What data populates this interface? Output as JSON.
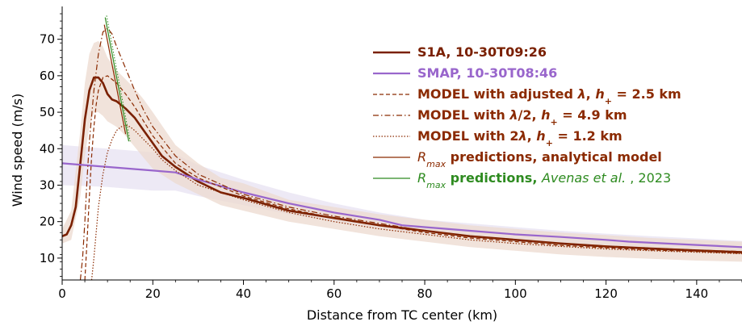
{
  "chart_data": {
    "type": "line",
    "xlabel": "Distance from TC center (km)",
    "ylabel": "Wind speed (m/s)",
    "xlim": [
      0,
      150
    ],
    "ylim": [
      4,
      79
    ],
    "x_ticks": [
      0,
      20,
      40,
      60,
      80,
      100,
      120,
      140
    ],
    "y_ticks": [
      10,
      20,
      30,
      40,
      50,
      60,
      70
    ],
    "grid": false,
    "legend_position": "upper-right",
    "colors": {
      "s1a": "#7a2000",
      "smap": "#9966cc",
      "model": "#8b2a00",
      "green": "#2e8b20",
      "s1a_band": "#ecd9cf",
      "smap_band": "#e7e1f2"
    },
    "legend": [
      {
        "key": "s1a",
        "parts": [
          {
            "text": "S1A, 10-30T09:26"
          }
        ]
      },
      {
        "key": "smap",
        "parts": [
          {
            "text": "SMAP, 10-30T08:46"
          }
        ]
      },
      {
        "key": "model_adj",
        "parts": [
          {
            "text": "MODEL with adjusted "
          },
          {
            "text": "λ",
            "italic": true
          },
          {
            "text": ", "
          },
          {
            "text": "h",
            "italic": true
          },
          {
            "text": "+",
            "sub": true
          },
          {
            "text": " = 2.5 km"
          }
        ]
      },
      {
        "key": "model_half",
        "parts": [
          {
            "text": "MODEL with "
          },
          {
            "text": "λ",
            "italic": true
          },
          {
            "text": "/2, "
          },
          {
            "text": "h",
            "italic": true
          },
          {
            "text": "+",
            "sub": true
          },
          {
            "text": " = 4.9 km"
          }
        ]
      },
      {
        "key": "model_double",
        "parts": [
          {
            "text": "MODEL with 2"
          },
          {
            "text": "λ",
            "italic": true
          },
          {
            "text": ", "
          },
          {
            "text": "h",
            "italic": true
          },
          {
            "text": "+",
            "sub": true
          },
          {
            "text": " = 1.2 km"
          }
        ]
      },
      {
        "key": "rmax_analytical",
        "parts": [
          {
            "text": "R",
            "italic": true,
            "normal": true
          },
          {
            "text": "max",
            "italic": true,
            "normal": true,
            "sub": true
          },
          {
            "text": " predictions, analytical model"
          }
        ]
      },
      {
        "key": "rmax_avenas",
        "parts": [
          {
            "text": "R",
            "italic": true,
            "normal": true
          },
          {
            "text": "max",
            "italic": true,
            "normal": true,
            "sub": true
          },
          {
            "text": " predictions, "
          },
          {
            "text": "Avenas et al.",
            "italic": true,
            "normal": true
          },
          {
            "text": " ,  2023",
            "normal": true
          }
        ]
      }
    ],
    "series": [
      {
        "key": "s1a",
        "name": "S1A, 10-30T09:26",
        "style": "solid",
        "width": 2.6,
        "x": [
          0,
          1,
          2,
          3,
          4,
          5,
          6,
          7,
          8,
          9,
          10,
          11,
          12,
          14,
          16,
          18,
          20,
          22,
          25,
          30,
          35,
          40,
          50,
          60,
          70,
          80,
          90,
          100,
          110,
          120,
          130,
          140,
          150
        ],
        "y": [
          16,
          16.5,
          19,
          24,
          36,
          48,
          56,
          59.5,
          59.5,
          58,
          55,
          53.5,
          53,
          51,
          48.5,
          45,
          41.5,
          38,
          35,
          31,
          28,
          26.5,
          23,
          21,
          19,
          17.5,
          16,
          15,
          14,
          13.2,
          12.6,
          12.1,
          11.6
        ]
      },
      {
        "key": "smap",
        "name": "SMAP, 10-30T08:46",
        "style": "solid",
        "width": 2.2,
        "x": [
          0,
          10,
          20,
          25,
          30,
          40,
          50,
          60,
          70,
          75,
          80,
          90,
          100,
          110,
          120,
          125,
          130,
          140,
          150
        ],
        "y": [
          36,
          35,
          34,
          33.5,
          31.5,
          28,
          25,
          22.5,
          20.5,
          19,
          18.5,
          17.5,
          16.5,
          15.8,
          15,
          14.5,
          14.2,
          13.6,
          13
        ]
      },
      {
        "key": "model_adj",
        "name": "MODEL with adjusted λ, h+ = 2.5 km",
        "style": "dashed",
        "width": 1.2,
        "x": [
          5,
          5.5,
          6,
          6.5,
          7,
          7.5,
          8,
          9,
          10,
          12,
          14,
          16,
          18,
          20,
          25,
          30,
          40,
          50,
          60,
          70,
          80,
          90,
          100,
          110,
          120,
          130,
          140,
          150
        ],
        "y": [
          4,
          15,
          27,
          38,
          46,
          52,
          56,
          59.5,
          60,
          58,
          55,
          51.5,
          47.5,
          43.5,
          36,
          32,
          27,
          23.5,
          21,
          19,
          17,
          15.5,
          14.5,
          13.5,
          12.8,
          12.2,
          11.8,
          11.3
        ]
      },
      {
        "key": "model_half",
        "name": "MODEL with λ/2, h+ = 4.9 km",
        "style": "dashdot",
        "width": 1.2,
        "x": [
          4,
          4.5,
          5,
          5.5,
          6,
          7,
          8,
          9,
          10,
          11,
          12,
          14,
          16,
          18,
          20,
          25,
          30,
          40,
          50,
          60,
          70,
          80,
          90,
          100,
          110,
          120,
          130,
          140,
          150
        ],
        "y": [
          4,
          10,
          20,
          32,
          42,
          56,
          66,
          72,
          73,
          71.5,
          68,
          62,
          56,
          50.5,
          46,
          38,
          33,
          27.5,
          24,
          21.5,
          19.5,
          17.5,
          16,
          15,
          14,
          13.3,
          12.7,
          12.2,
          11.8
        ]
      },
      {
        "key": "model_double",
        "name": "MODEL with 2λ, h+ = 1.2 km",
        "style": "dotted",
        "width": 1.2,
        "x": [
          6.5,
          7,
          7.5,
          8,
          9,
          10,
          11,
          12,
          13,
          14,
          15,
          16,
          18,
          20,
          22,
          25,
          30,
          40,
          50,
          60,
          70,
          80,
          90,
          100,
          110,
          120,
          130,
          140,
          150
        ],
        "y": [
          4,
          10,
          17,
          24,
          33,
          39,
          42.5,
          45,
          46,
          46.5,
          46,
          45,
          42.5,
          40,
          37,
          34,
          30,
          26,
          22.5,
          20,
          18,
          16.5,
          15,
          14,
          13.2,
          12.5,
          12,
          11.6,
          11.2
        ]
      },
      {
        "key": "rmax_analytical",
        "name": "R_max predictions, analytical model",
        "style": "solid",
        "width": 1.2,
        "x": [
          9.3,
          14
        ],
        "y": [
          74,
          44
        ]
      },
      {
        "key": "rmax_avenas",
        "name": "R_max predictions, Avenas et al., 2023",
        "style": "solid",
        "width": 1.2,
        "x": [
          9.5,
          14.7
        ],
        "y": [
          76,
          42
        ]
      },
      {
        "key": "rmax_avenas_2",
        "name": "",
        "style": "dotted",
        "width": 1.0,
        "x": [
          9.8,
          15
        ],
        "y": [
          76.5,
          42
        ]
      }
    ],
    "bands": [
      {
        "key": "smap_band",
        "x": [
          0,
          10,
          20,
          25,
          30,
          40,
          50,
          60,
          70,
          80,
          90,
          100,
          110,
          120,
          130,
          140,
          150
        ],
        "lower": [
          30,
          29.5,
          28.5,
          28.5,
          27,
          24.5,
          22,
          20,
          18,
          16.5,
          15.5,
          14.5,
          13.8,
          13,
          12.4,
          11.8,
          11.3
        ],
        "upper": [
          41,
          40,
          39,
          38.5,
          35.5,
          31.5,
          28,
          25,
          22.5,
          20.5,
          19.5,
          18.5,
          17.5,
          16.7,
          16,
          15.4,
          14.7
        ]
      },
      {
        "key": "s1a_band",
        "x": [
          0,
          2,
          4,
          5,
          6,
          7,
          8,
          9,
          10,
          12,
          14,
          16,
          18,
          20,
          25,
          30,
          35,
          40,
          50,
          60,
          70,
          80,
          90,
          100,
          110,
          120,
          130,
          140,
          150
        ],
        "lower": [
          14,
          15,
          27,
          38,
          46,
          50,
          50,
          49,
          47.5,
          46,
          43.5,
          40.5,
          37.5,
          34.5,
          30.5,
          27.5,
          24.5,
          23,
          20,
          18,
          16,
          14.5,
          13,
          12,
          11,
          10.3,
          9.8,
          9.3,
          9
        ],
        "upper": [
          18,
          23,
          45,
          58,
          66,
          69,
          69.5,
          68,
          65,
          61.5,
          59,
          56.5,
          53.5,
          50,
          41,
          36,
          32,
          30.5,
          26,
          24,
          22,
          20.5,
          19,
          18,
          17,
          16.3,
          15.5,
          15,
          14.5
        ]
      }
    ]
  }
}
